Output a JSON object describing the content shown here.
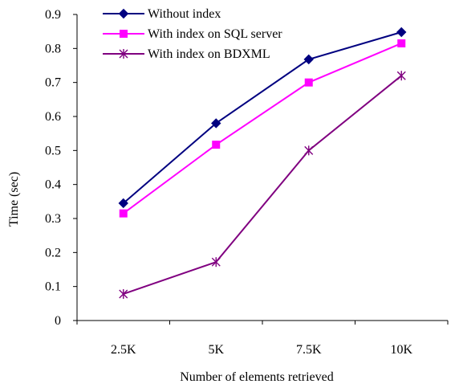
{
  "chart_data": {
    "type": "line",
    "title": "",
    "xlabel": "Number of elements retrieved",
    "ylabel": "Time (sec)",
    "categories": [
      "2.5K",
      "5K",
      "7.5K",
      "10K"
    ],
    "ylim": [
      0,
      0.9
    ],
    "yticks": [
      "0",
      "0.1",
      "0.2",
      "0.3",
      "0.4",
      "0.5",
      "0.6",
      "0.7",
      "0.8",
      "0.9"
    ],
    "grid": false,
    "legend_position": "top-left",
    "series": [
      {
        "name": "Without index",
        "values": [
          0.345,
          0.58,
          0.768,
          0.848
        ],
        "color": "#000080",
        "marker": "diamond"
      },
      {
        "name": "With index on SQL server",
        "values": [
          0.315,
          0.517,
          0.7,
          0.815
        ],
        "color": "#FF00FF",
        "marker": "square"
      },
      {
        "name": "With index on BDXML",
        "values": [
          0.078,
          0.172,
          0.5,
          0.72
        ],
        "color": "#800080",
        "marker": "asterisk"
      }
    ]
  }
}
